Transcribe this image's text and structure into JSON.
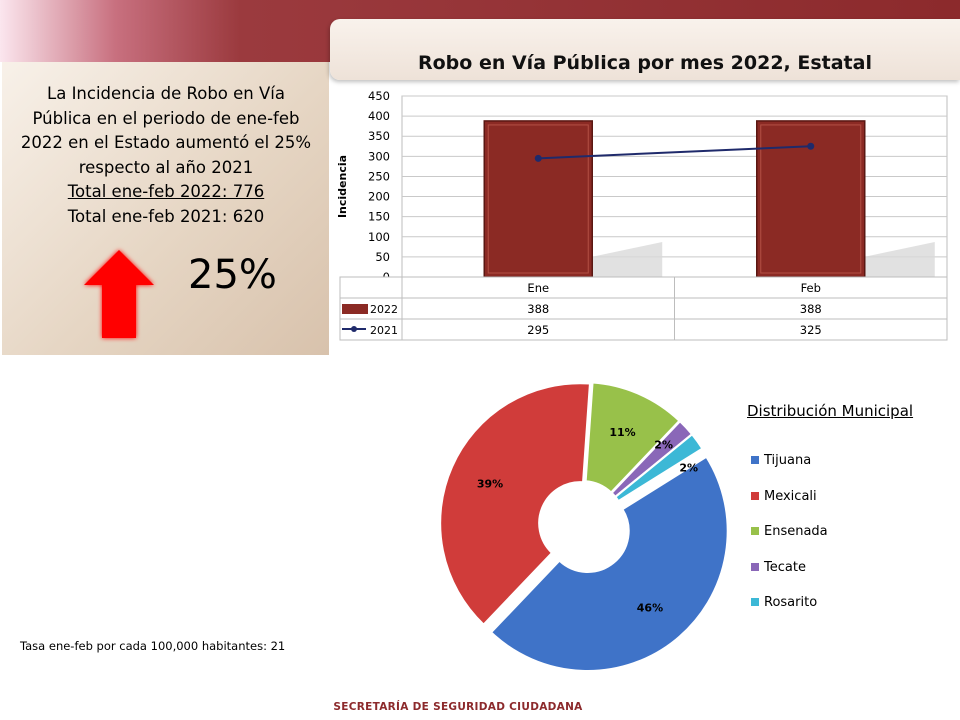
{
  "summary": {
    "line1": "La Incidencia de Robo en Vía",
    "line2": "Pública en el periodo de ene-feb",
    "line3": "2022 en el Estado aumentó el 25%",
    "line4": "respecto al año 2021",
    "total_2022": "Total ene-feb 2022: 776",
    "total_2021": "Total ene-feb 2021: 620",
    "big_percent": "25%",
    "arrow_color": "#ff0000"
  },
  "colors": {
    "bar_2022": "#8b2a24",
    "line_2021": "#1f2a6b",
    "banner": "#8c2a2c"
  },
  "chart_data": [
    {
      "type": "bar",
      "title": "Robo en Vía Pública por mes 2022, Estatal",
      "ylabel": "Incidencia",
      "xlabel": "",
      "categories": [
        "Ene",
        "Feb"
      ],
      "ylim": [
        0,
        450
      ],
      "yticks": [
        0,
        50,
        100,
        150,
        200,
        250,
        300,
        350,
        400,
        450
      ],
      "grid": true,
      "series": [
        {
          "name": "2022",
          "kind": "bar",
          "values": [
            388,
            388
          ]
        },
        {
          "name": "2021",
          "kind": "line",
          "values": [
            295,
            325
          ]
        }
      ],
      "data_table": true
    },
    {
      "type": "pie",
      "style": "donut",
      "legend_title": "Distribución Municipal",
      "legend_position": "right",
      "slices": [
        {
          "label": "Tijuana",
          "value": 46,
          "text": "46%",
          "color": "#3f73c8"
        },
        {
          "label": "Mexicali",
          "value": 39,
          "text": "39%",
          "color": "#d03c3a"
        },
        {
          "label": "Ensenada",
          "value": 11,
          "text": "11%",
          "color": "#98c14a"
        },
        {
          "label": "Tecate",
          "value": 2,
          "text": "2%",
          "color": "#8a67b8"
        },
        {
          "label": "Rosarito",
          "value": 2,
          "text": "2%",
          "color": "#3cb8d6"
        }
      ]
    }
  ],
  "footer": {
    "rate": "Tasa ene-feb por cada 100,000  habitantes: 21",
    "agency": "SECRETARÍA DE SEGURIDAD CIUDADANA"
  }
}
